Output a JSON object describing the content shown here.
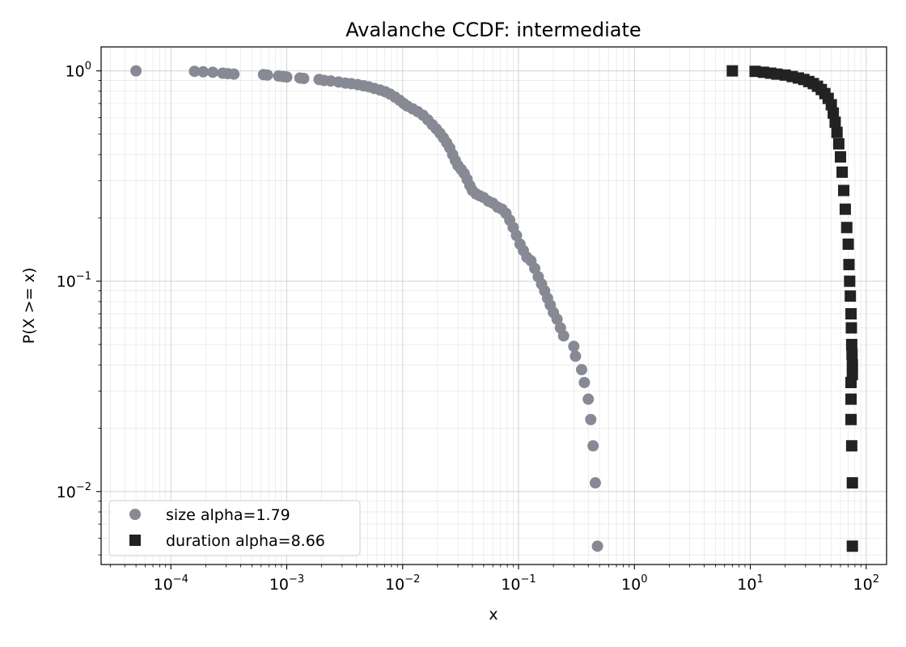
{
  "chart_data": {
    "type": "scatter",
    "title": "Avalanche CCDF: intermediate",
    "xlabel": "x",
    "ylabel": "P(X >= x)",
    "xscale": "log",
    "yscale": "log",
    "xlim": [
      2.5e-05,
      150
    ],
    "ylim": [
      0.0045,
      1.3
    ],
    "grid": true,
    "legend_position": "lower-left",
    "x_ticks": [
      {
        "value": 0.0001,
        "base": "10",
        "exp": "−4"
      },
      {
        "value": 0.001,
        "base": "10",
        "exp": "−3"
      },
      {
        "value": 0.01,
        "base": "10",
        "exp": "−2"
      },
      {
        "value": 0.1,
        "base": "10",
        "exp": "−1"
      },
      {
        "value": 1,
        "base": "10",
        "exp": "0"
      },
      {
        "value": 10,
        "base": "10",
        "exp": "1"
      },
      {
        "value": 100,
        "base": "10",
        "exp": "2"
      }
    ],
    "y_ticks": [
      {
        "value": 0.01,
        "base": "10",
        "exp": "−2"
      },
      {
        "value": 0.1,
        "base": "10",
        "exp": "−1"
      },
      {
        "value": 1,
        "base": "10",
        "exp": "0"
      }
    ],
    "series": [
      {
        "name": "size alpha=1.79",
        "marker": "circle",
        "color": "#878a94",
        "points": [
          [
            5e-05,
            1.0
          ],
          [
            0.00016,
            0.995
          ],
          [
            0.00019,
            0.99
          ],
          [
            0.00023,
            0.985
          ],
          [
            0.00028,
            0.975
          ],
          [
            0.00031,
            0.97
          ],
          [
            0.00035,
            0.965
          ],
          [
            0.00063,
            0.96
          ],
          [
            0.00068,
            0.955
          ],
          [
            0.00085,
            0.945
          ],
          [
            0.00093,
            0.94
          ],
          [
            0.001,
            0.935
          ],
          [
            0.0013,
            0.925
          ],
          [
            0.0014,
            0.92
          ],
          [
            0.0019,
            0.91
          ],
          [
            0.0021,
            0.9
          ],
          [
            0.0024,
            0.895
          ],
          [
            0.0028,
            0.885
          ],
          [
            0.0032,
            0.875
          ],
          [
            0.0036,
            0.87
          ],
          [
            0.0041,
            0.86
          ],
          [
            0.0046,
            0.85
          ],
          [
            0.0051,
            0.84
          ],
          [
            0.0057,
            0.825
          ],
          [
            0.0064,
            0.81
          ],
          [
            0.0071,
            0.795
          ],
          [
            0.0078,
            0.775
          ],
          [
            0.0086,
            0.75
          ],
          [
            0.0094,
            0.725
          ],
          [
            0.0102,
            0.7
          ],
          [
            0.011,
            0.68
          ],
          [
            0.0122,
            0.66
          ],
          [
            0.0135,
            0.64
          ],
          [
            0.015,
            0.615
          ],
          [
            0.0165,
            0.585
          ],
          [
            0.018,
            0.555
          ],
          [
            0.0195,
            0.53
          ],
          [
            0.021,
            0.505
          ],
          [
            0.0225,
            0.48
          ],
          [
            0.024,
            0.455
          ],
          [
            0.0255,
            0.43
          ],
          [
            0.027,
            0.4
          ],
          [
            0.0285,
            0.375
          ],
          [
            0.03,
            0.355
          ],
          [
            0.032,
            0.34
          ],
          [
            0.034,
            0.325
          ],
          [
            0.036,
            0.305
          ],
          [
            0.038,
            0.285
          ],
          [
            0.04,
            0.27
          ],
          [
            0.043,
            0.26
          ],
          [
            0.046,
            0.255
          ],
          [
            0.05,
            0.25
          ],
          [
            0.055,
            0.24
          ],
          [
            0.06,
            0.235
          ],
          [
            0.066,
            0.225
          ],
          [
            0.072,
            0.22
          ],
          [
            0.078,
            0.21
          ],
          [
            0.084,
            0.195
          ],
          [
            0.09,
            0.18
          ],
          [
            0.096,
            0.165
          ],
          [
            0.103,
            0.15
          ],
          [
            0.11,
            0.14
          ],
          [
            0.118,
            0.13
          ],
          [
            0.128,
            0.125
          ],
          [
            0.138,
            0.115
          ],
          [
            0.148,
            0.105
          ],
          [
            0.158,
            0.097
          ],
          [
            0.168,
            0.09
          ],
          [
            0.178,
            0.083
          ],
          [
            0.188,
            0.077
          ],
          [
            0.2,
            0.071
          ],
          [
            0.215,
            0.066
          ],
          [
            0.23,
            0.06
          ],
          [
            0.245,
            0.055
          ],
          [
            0.3,
            0.049
          ],
          [
            0.31,
            0.044
          ],
          [
            0.35,
            0.038
          ],
          [
            0.37,
            0.033
          ],
          [
            0.4,
            0.0275
          ],
          [
            0.42,
            0.022
          ],
          [
            0.44,
            0.0165
          ],
          [
            0.46,
            0.011
          ],
          [
            0.48,
            0.0055
          ]
        ]
      },
      {
        "name": "duration alpha=8.66",
        "marker": "square",
        "color": "#222222",
        "points": [
          [
            7.0,
            1.0
          ],
          [
            11,
            0.995
          ],
          [
            13,
            0.985
          ],
          [
            15,
            0.975
          ],
          [
            17,
            0.965
          ],
          [
            20,
            0.955
          ],
          [
            23,
            0.94
          ],
          [
            26,
            0.925
          ],
          [
            29,
            0.91
          ],
          [
            32,
            0.89
          ],
          [
            35,
            0.87
          ],
          [
            38,
            0.845
          ],
          [
            41,
            0.815
          ],
          [
            44,
            0.78
          ],
          [
            47,
            0.74
          ],
          [
            50,
            0.69
          ],
          [
            52,
            0.63
          ],
          [
            54,
            0.57
          ],
          [
            56,
            0.51
          ],
          [
            58,
            0.45
          ],
          [
            60,
            0.39
          ],
          [
            62,
            0.33
          ],
          [
            64,
            0.27
          ],
          [
            66,
            0.22
          ],
          [
            68,
            0.18
          ],
          [
            70,
            0.15
          ],
          [
            71,
            0.12
          ],
          [
            72,
            0.1
          ],
          [
            73,
            0.085
          ],
          [
            74,
            0.07
          ],
          [
            74.5,
            0.06
          ],
          [
            75,
            0.05
          ],
          [
            75.5,
            0.045
          ],
          [
            76,
            0.04
          ],
          [
            76,
            0.036
          ],
          [
            74,
            0.033
          ],
          [
            74,
            0.0275
          ],
          [
            74,
            0.022
          ],
          [
            75,
            0.0165
          ],
          [
            76,
            0.011
          ],
          [
            76,
            0.0055
          ]
        ]
      }
    ]
  }
}
